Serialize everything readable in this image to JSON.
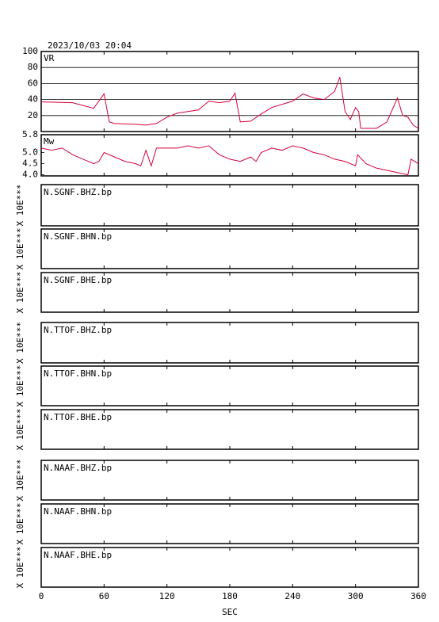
{
  "timestamp": "2023/10/03 20:04",
  "chart_data": [
    {
      "type": "line",
      "xlim": [
        0,
        360
      ],
      "ylim": [
        0,
        100
      ],
      "yticks": [
        20,
        40,
        60,
        80,
        100
      ],
      "grid": true,
      "series": [
        {
          "name": "VR",
          "color": "#d4003c",
          "x": [
            0,
            30,
            50,
            60,
            65,
            70,
            90,
            100,
            110,
            120,
            130,
            150,
            160,
            170,
            180,
            185,
            190,
            200,
            210,
            220,
            240,
            250,
            260,
            270,
            280,
            285,
            290,
            295,
            300,
            303,
            305,
            320,
            330,
            340,
            345,
            350,
            355,
            360
          ],
          "values": [
            37,
            36,
            29,
            47,
            12,
            10,
            9,
            8,
            10,
            18,
            23,
            27,
            38,
            36,
            38,
            48,
            12,
            13,
            22,
            30,
            38,
            47,
            42,
            40,
            50,
            68,
            25,
            15,
            30,
            25,
            4,
            4,
            12,
            42,
            20,
            18,
            8,
            4
          ]
        }
      ]
    },
    {
      "type": "line",
      "xlim": [
        0,
        360
      ],
      "ylim": [
        3.95,
        5.8
      ],
      "yticks": [
        {
          "value": 4,
          "label": "4.0"
        },
        4.5,
        {
          "value": 5,
          "label": "5.0"
        },
        5.8
      ],
      "grid": false,
      "series": [
        {
          "name": "Mw",
          "color": "#d4003c",
          "x": [
            0,
            10,
            20,
            30,
            40,
            50,
            55,
            60,
            70,
            80,
            90,
            95,
            100,
            105,
            110,
            130,
            140,
            150,
            160,
            170,
            180,
            190,
            200,
            205,
            210,
            220,
            230,
            240,
            250,
            260,
            270,
            280,
            290,
            300,
            302,
            310,
            320,
            330,
            340,
            350,
            353,
            360
          ],
          "values": [
            5.2,
            5.1,
            5.2,
            4.9,
            4.7,
            4.5,
            4.6,
            5.0,
            4.8,
            4.6,
            4.5,
            4.4,
            5.1,
            4.4,
            5.2,
            5.2,
            5.3,
            5.2,
            5.3,
            4.9,
            4.7,
            4.6,
            4.8,
            4.6,
            5.0,
            5.2,
            5.1,
            5.3,
            5.2,
            5.0,
            4.9,
            4.7,
            4.6,
            4.4,
            4.9,
            4.5,
            4.3,
            4.2,
            4.1,
            4.0,
            4.7,
            4.5
          ]
        }
      ]
    }
  ],
  "traces": [
    "N.SGNF.BHZ.bp",
    "N.SGNF.BHN.bp",
    "N.SGNF.BHE.bp",
    "N.TTOF.BHZ.bp",
    "N.TTOF.BHN.bp",
    "N.TTOF.BHE.bp",
    "N.NAAF.BHZ.bp",
    "N.NAAF.BHN.bp",
    "N.NAAF.BHE.bp"
  ],
  "trace_ylabel": "X 10E***",
  "x_axis": {
    "label": "SEC",
    "xlim": [
      0,
      360
    ],
    "xticks": [
      0,
      60,
      120,
      180,
      240,
      300,
      360
    ]
  }
}
